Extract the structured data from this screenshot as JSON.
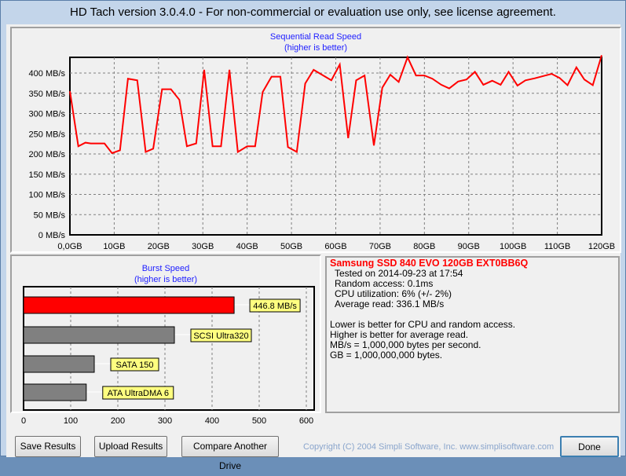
{
  "window": {
    "title": "HD Tach version 3.0.4.0  - For non-commercial or evaluation use only, see license agreement."
  },
  "colors": {
    "line": "#ff0000",
    "bar_tested": "#ff0000",
    "bar_ref": "#808080",
    "label_bg": "#ffff80",
    "title_blue": "#2020ff"
  },
  "chart_data": [
    {
      "type": "line",
      "title": "Sequential Read Speed",
      "subtitle": "(higher is better)",
      "xlabel": "",
      "ylabel": "",
      "xlim": [
        0,
        120
      ],
      "ylim": [
        0,
        400
      ],
      "xticks": [
        "0,0GB",
        "10GB",
        "20GB",
        "30GB",
        "40GB",
        "50GB",
        "60GB",
        "70GB",
        "80GB",
        "90GB",
        "100GB",
        "110GB",
        "120GB"
      ],
      "yticks": [
        "0 MB/s",
        "50 MB/s",
        "100 MB/s",
        "150 MB/s",
        "200 MB/s",
        "250 MB/s",
        "300 MB/s",
        "350 MB/s",
        "400 MB/s"
      ],
      "grid": true,
      "x": [
        0,
        1.9,
        3.5,
        4.7,
        7.8,
        9.5,
        11.3,
        13.1,
        15.2,
        17.1,
        18.8,
        20.8,
        22.8,
        24.7,
        26.4,
        28.5,
        30.3,
        32.2,
        34.1,
        36,
        37.9,
        40,
        41.8,
        43.5,
        45.5,
        47.5,
        49.2,
        51.2,
        53.1,
        55,
        59,
        60.9,
        62.8,
        64.6,
        66.5,
        68.6,
        70.5,
        72.3,
        74.2,
        76.2,
        78.1,
        80,
        81.8,
        83.8,
        85.6,
        87.6,
        89.5,
        91.4,
        93.3,
        95.3,
        97.2,
        99,
        101,
        102.8,
        104.9,
        108.7,
        110.5,
        112.3,
        114.3,
        116.1,
        118,
        120
      ],
      "y": [
        355,
        219,
        228,
        226,
        226,
        202,
        209,
        386,
        382,
        205,
        213,
        360,
        360,
        334,
        219,
        226,
        408,
        219,
        219,
        408,
        205,
        219,
        219,
        353,
        391,
        391,
        217,
        205,
        374,
        408,
        382,
        421,
        239,
        382,
        394,
        221,
        364,
        396,
        378,
        439,
        394,
        394,
        386,
        371,
        362,
        379,
        384,
        403,
        371,
        381,
        371,
        403,
        369,
        382,
        387,
        398,
        388,
        370,
        414,
        384,
        370,
        444
      ]
    },
    {
      "type": "bar",
      "title": "Burst Speed",
      "subtitle": "(higher is better)",
      "xlim": [
        0,
        600
      ],
      "xticks": [
        "0",
        "100",
        "200",
        "300",
        "400",
        "500",
        "600"
      ],
      "grid": true,
      "categories": [
        "446.8 MB/s",
        "SCSI Ultra320",
        "SATA 150",
        "ATA UltraDMA 6"
      ],
      "values": [
        446.8,
        320,
        150,
        133
      ]
    }
  ],
  "info": {
    "drive": "Samsung SSD 840 EVO 120GB EXT0BB6Q",
    "lines": [
      "Tested on 2014-09-23 at 17:54",
      "Random access: 0.1ms",
      "CPU utilization: 6% (+/- 2%)",
      "Average read: 336.1 MB/s"
    ],
    "notes": [
      "Lower is better for CPU and random access.",
      "Higher is better for average read.",
      "MB/s = 1,000,000 bytes per second.",
      "GB = 1,000,000,000 bytes."
    ]
  },
  "buttons": {
    "save": "Save Results",
    "upload": "Upload Results",
    "compare": "Compare Another Drive",
    "done": "Done"
  },
  "copyright": "Copyright (C) 2004 Simpli Software, Inc. www.simplisoftware.com"
}
